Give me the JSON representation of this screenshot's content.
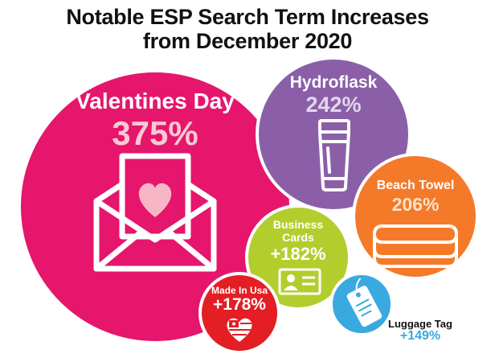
{
  "title": {
    "line1": "Notable ESP Search Term Increases",
    "line2": "from December 2020"
  },
  "colors": {
    "valentines": "#e5166b",
    "hydroflask": "#8a5fa8",
    "beach_towel": "#f47a2a",
    "business_cards": "#b3ce2c",
    "made_in_usa": "#e31e24",
    "luggage_tag": "#3aa9e0",
    "percent_light_pink": "#f9c9d3",
    "percent_light_purple": "#e2d6ec",
    "percent_light_orange": "#fde1c8",
    "luggage_text": "#3aa9e0"
  },
  "items": {
    "valentines": {
      "name": "Valentines Day",
      "percent": "375%",
      "icon": "envelope-heart-icon"
    },
    "hydroflask": {
      "name": "Hydroflask",
      "percent": "242%",
      "icon": "tumbler-icon"
    },
    "beach_towel": {
      "name": "Beach Towel",
      "percent": "206%",
      "icon": "folded-towel-icon"
    },
    "business_cards": {
      "name_line1": "Business",
      "name_line2": "Cards",
      "percent": "+182%",
      "icon": "id-card-icon"
    },
    "made_in_usa": {
      "name": "Made In Usa",
      "percent": "+178%",
      "icon": "usa-flag-heart-icon"
    },
    "luggage_tag": {
      "name": "Luggage Tag",
      "percent": "+149%",
      "icon": "luggage-tag-icon"
    }
  }
}
